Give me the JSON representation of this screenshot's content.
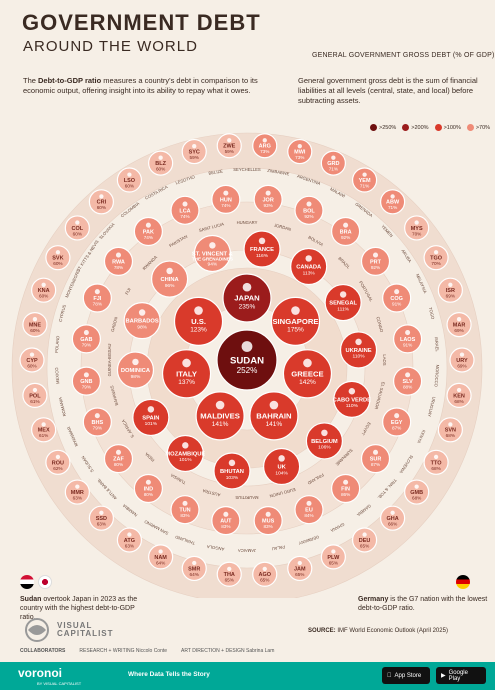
{
  "header": {
    "title": "GOVERNMENT DEBT",
    "subtitle": "AROUND THE WORLD",
    "intro_prefix": "The ",
    "intro_bold": "Debt-to-GDP ratio",
    "intro_rest": " measures a country's debt in comparison to its economic output, offering insight into its ability to repay what it owes.",
    "legend_title": "GENERAL GOVERNMENT GROSS DEBT (% OF GDP)",
    "definition": "General government gross debt is the sum of financial liabilities at all levels (central, state, and local) before subtracting assets."
  },
  "legend_bins": [
    {
      "label": ">250%",
      "color": "#6e0f0f"
    },
    {
      "label": ">200%",
      "color": "#9b1c1c"
    },
    {
      "label": ">100%",
      "color": "#d93a2b"
    },
    {
      "label": ">70%",
      "color": "#ef8b77"
    },
    {
      "label": ">50%",
      "color": "#f4b9a7"
    }
  ],
  "chart_data": {
    "type": "bubble",
    "value_unit": "% of GDP",
    "points": [
      {
        "code": "SUDAN",
        "value": 252
      },
      {
        "code": "JAPAN",
        "value": 235
      },
      {
        "code": "SINGAPORE",
        "value": 175
      },
      {
        "code": "GREECE",
        "value": 142
      },
      {
        "code": "BAHRAIN",
        "value": 141
      },
      {
        "code": "MALDIVES",
        "value": 141
      },
      {
        "code": "ITALY",
        "value": 137
      },
      {
        "code": "U.S.",
        "value": 123
      },
      {
        "code": "FRANCE",
        "value": 116
      },
      {
        "code": "CANADA",
        "value": 113
      },
      {
        "code": "UKRAINE",
        "value": 110
      },
      {
        "code": "CABO VERDE",
        "value": 110
      },
      {
        "code": "BELGIUM",
        "value": 106
      },
      {
        "code": "UK",
        "value": 104
      },
      {
        "code": "BHUTAN",
        "value": 103
      },
      {
        "code": "SPAIN",
        "value": 101
      },
      {
        "code": "MOZAMBIQUE",
        "value": 101
      },
      {
        "code": "DOMINICA",
        "value": 98
      },
      {
        "code": "BARBADOS",
        "value": 98
      },
      {
        "code": "CHINA",
        "value": 96
      },
      {
        "code": "ST. VINCENT & THE GRENADINES",
        "value": 94
      },
      {
        "code": "SENEGAL",
        "value": 111
      },
      {
        "code": "LAOS",
        "value": 91
      },
      {
        "code": "JOR",
        "value": 93
      },
      {
        "code": "BOL",
        "value": 92
      },
      {
        "code": "BRA",
        "value": 92
      },
      {
        "code": "PRT",
        "value": 92
      },
      {
        "code": "HUN",
        "value": 74
      },
      {
        "code": "LCA",
        "value": 74
      },
      {
        "code": "PAK",
        "value": 74
      },
      {
        "code": "RWA",
        "value": 78
      },
      {
        "code": "FJI",
        "value": 78
      },
      {
        "code": "GAB",
        "value": 79
      },
      {
        "code": "GNB",
        "value": 79
      },
      {
        "code": "BHS",
        "value": 79
      },
      {
        "code": "ZAF",
        "value": 80
      },
      {
        "code": "IND",
        "value": 80
      },
      {
        "code": "TUN",
        "value": 83
      },
      {
        "code": "AUT",
        "value": 83
      },
      {
        "code": "MUS",
        "value": 83
      },
      {
        "code": "EU",
        "value": 84
      },
      {
        "code": "FIN",
        "value": 86
      },
      {
        "code": "SUR",
        "value": 87
      },
      {
        "code": "EGY",
        "value": 87
      },
      {
        "code": "SLV",
        "value": 88
      },
      {
        "code": "COG",
        "value": 91
      },
      {
        "code": "TGO",
        "value": 70
      },
      {
        "code": "MYS",
        "value": 70
      },
      {
        "code": "ABW",
        "value": 71
      },
      {
        "code": "YEM",
        "value": 71
      },
      {
        "code": "GRD",
        "value": 71
      },
      {
        "code": "MWI",
        "value": 73
      },
      {
        "code": "ARG",
        "value": 73
      },
      {
        "code": "ZWE",
        "value": 59
      },
      {
        "code": "SYC",
        "value": 59
      },
      {
        "code": "BLZ",
        "value": 60
      },
      {
        "code": "LSO",
        "value": 60
      },
      {
        "code": "CRI",
        "value": 60
      },
      {
        "code": "COL",
        "value": 60
      },
      {
        "code": "SVK",
        "value": 60
      },
      {
        "code": "KNA",
        "value": 60
      },
      {
        "code": "MNE",
        "value": 60
      },
      {
        "code": "CYP",
        "value": 60
      },
      {
        "code": "POL",
        "value": 61
      },
      {
        "code": "MEX",
        "value": 61
      },
      {
        "code": "ROU",
        "value": 62
      },
      {
        "code": "MMR",
        "value": 63
      },
      {
        "code": "SSD",
        "value": 63
      },
      {
        "code": "ATG",
        "value": 63
      },
      {
        "code": "NAM",
        "value": 64
      },
      {
        "code": "SMR",
        "value": 64
      },
      {
        "code": "THA",
        "value": 65
      },
      {
        "code": "AGO",
        "value": 65
      },
      {
        "code": "JAM",
        "value": 65
      },
      {
        "code": "PLW",
        "value": 65
      },
      {
        "code": "DEU",
        "value": 65
      },
      {
        "code": "GHA",
        "value": 66
      },
      {
        "code": "GMB",
        "value": 68
      },
      {
        "code": "TTO",
        "value": 68
      },
      {
        "code": "SVN",
        "value": 68
      },
      {
        "code": "KEN",
        "value": 68
      },
      {
        "code": "URY",
        "value": 69
      },
      {
        "code": "MAR",
        "value": 69
      },
      {
        "code": "ISR",
        "value": 69
      }
    ]
  },
  "ring_labels": [
    "SEYCHELLES",
    "ZIMBABWE",
    "ARGENTINA",
    "MALAWI",
    "GRENADA",
    "YEMEN",
    "ARUBA",
    "MALAYSIA",
    "TOGO",
    "ISRAEL",
    "MOROCCO",
    "URUGUAY",
    "KENYA",
    "SLOVENIA",
    "TRIN. & TOB.",
    "GAMBIA",
    "GHANA",
    "GERMANY",
    "PALAU",
    "JAMAICA",
    "ANGOLA",
    "THAILAND",
    "SAN MARINO",
    "NAMIBIA",
    "ANTI.& BARB.",
    "S.SUDAN",
    "MYANMAR",
    "ROMANIA",
    "MEXICO",
    "POLAND",
    "CYPRUS",
    "MONTENEGRO",
    "ST. KITTS & NEVIS",
    "SLOVAKIA",
    "COLOMBIA",
    "COSTA RICA",
    "LESOTHO",
    "BELIZE",
    "HUNGARY",
    "JORDAN",
    "BOLIVIA",
    "BRAZIL",
    "PORTUGAL",
    "CONGO",
    "LAOS",
    "EL SALVADOR",
    "EGYPT",
    "SURINAME",
    "FINLAND",
    "EURO UNION",
    "MAURITIUS",
    "AUSTRIA",
    "TUNISIA",
    "INDIA",
    "S. AFRICA",
    "BAHAMAS",
    "GUINEA-BISSAU",
    "GABON",
    "FIJI",
    "RWANDA",
    "PAKISTAN",
    "SAINT LUCIA"
  ],
  "notes": {
    "left_bold": "Sudan",
    "left_text": " overtook Japan in 2023 as the country with the highest debt-to-GDP ratio.",
    "right_bold": "Germany",
    "right_text": " is the G7 nation with the lowest debt-to-GDP ratio."
  },
  "brand": {
    "line1": "VISUAL",
    "line2": "CAPITALIST"
  },
  "credits": {
    "label": "COLLABORATORS",
    "research": "RESEARCH + WRITING Niccolo Conte",
    "art": "ART DIRECTION + DESIGN Sabrina Lam"
  },
  "source": {
    "label": "SOURCE:",
    "text": "IMF World Economic Outlook (April 2025)"
  },
  "footer": {
    "logo": "voronoi",
    "logo_sub": "BY VISUAL CAPITALIST",
    "tagline": "Where Data Tells the Story",
    "appstore": "App Store",
    "googleplay": "Google Play"
  }
}
